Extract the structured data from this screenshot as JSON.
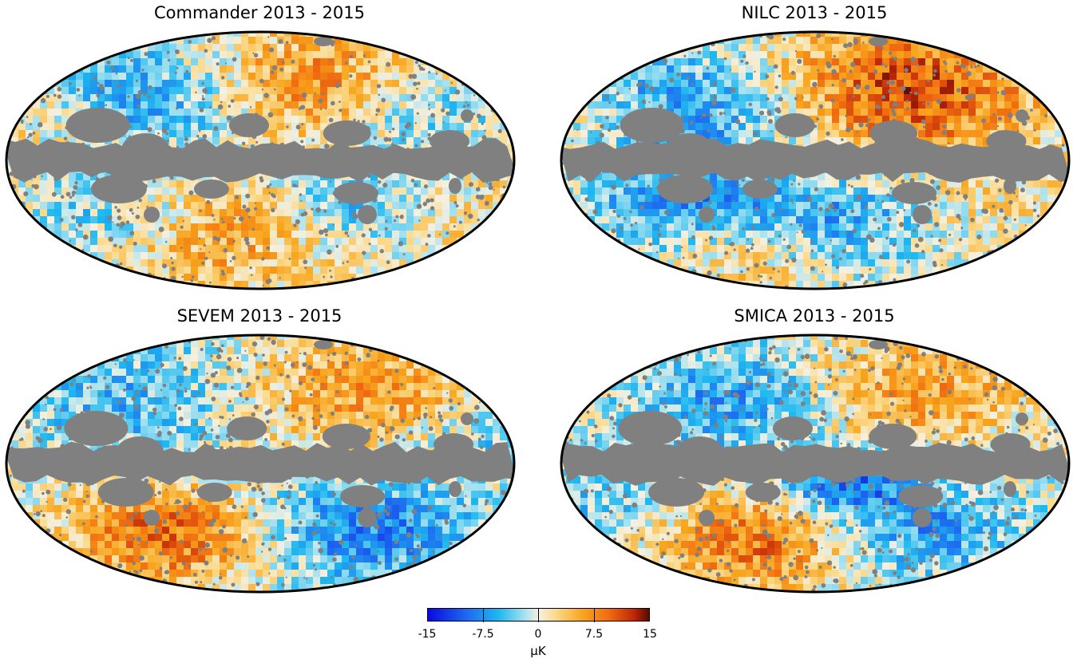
{
  "panels": [
    {
      "title": "Commander 2013 - 2015",
      "pattern": "commander"
    },
    {
      "title": "NILC 2013 - 2015",
      "pattern": "nilc"
    },
    {
      "title": "SEVEM 2013 - 2015",
      "pattern": "sevem"
    },
    {
      "title": "SMICA 2013 - 2015",
      "pattern": "smica"
    }
  ],
  "colorbar": {
    "ticks": [
      "-15",
      "-7.5",
      "0",
      "7.5",
      "15"
    ],
    "unit": "μK",
    "colors": [
      "#0a0ae0",
      "#1fb8f0",
      "#f5f0e0",
      "#f8a51d",
      "#5a0a00"
    ]
  },
  "mask_color": "#808080"
}
